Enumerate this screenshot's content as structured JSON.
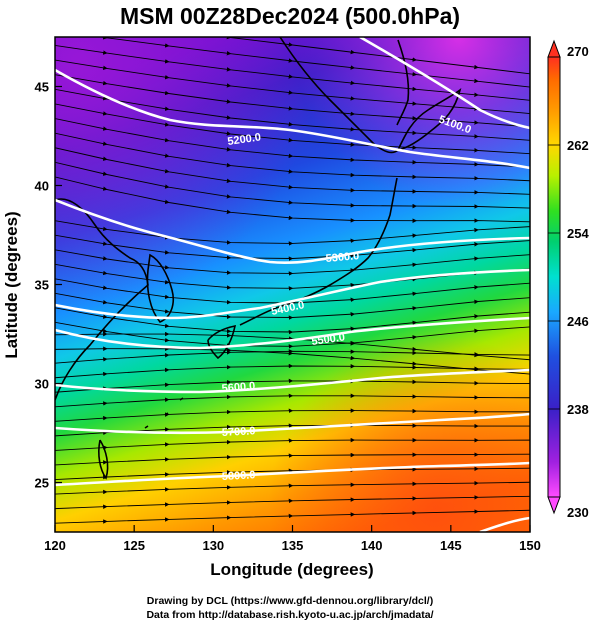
{
  "title": "MSM 00Z28Dec2024 (500.0hPa)",
  "x_axis": {
    "label": "Longitude (degrees)",
    "range": [
      120,
      150
    ],
    "ticks": [
      120,
      125,
      130,
      135,
      140,
      145,
      150
    ]
  },
  "y_axis": {
    "label": "Latitude  (degrees)",
    "range": [
      22.5,
      47.5
    ],
    "ticks": [
      25,
      30,
      35,
      40,
      45
    ]
  },
  "colorbar": {
    "range": [
      230,
      270
    ],
    "ticks": [
      230,
      238,
      246,
      254,
      262,
      270
    ],
    "colors": [
      "#ff4bff",
      "#a020e0",
      "#3a20c8",
      "#1f50e0",
      "#1aa8ff",
      "#00e0d0",
      "#00d070",
      "#30e020",
      "#b8f000",
      "#ffd800",
      "#ff9a00",
      "#ff6a00",
      "#ff3020"
    ]
  },
  "contours": [
    {
      "value": 5100,
      "label": "5100.0"
    },
    {
      "value": 5200,
      "label": "5200.0"
    },
    {
      "value": 5300,
      "label": "5300.0"
    },
    {
      "value": 5400,
      "label": "5400.0"
    },
    {
      "value": 5500,
      "label": "5500.0"
    },
    {
      "value": 5600,
      "label": "5600.0"
    },
    {
      "value": 5700,
      "label": "5700.0"
    },
    {
      "value": 5800,
      "label": "5800.0"
    }
  ],
  "credits": {
    "line1": "Drawing by DCL (https://www.gfd-dennou.org/library/dcl/)",
    "line2": "Data from http://database.rish.kyoto-u.ac.jp/arch/jmadata/"
  }
}
